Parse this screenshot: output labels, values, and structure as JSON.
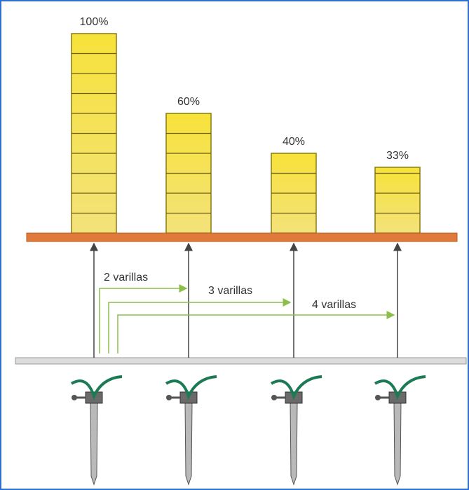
{
  "chart_data": {
    "type": "bar",
    "categories": [
      null,
      null,
      null,
      null
    ],
    "values": [
      100,
      60,
      40,
      33
    ],
    "value_labels": [
      "100%",
      "60%",
      "40%",
      "33%"
    ],
    "color": "#f5d800",
    "annotations": [
      "2 varillas",
      "3 varillas",
      "4 varillas"
    ]
  }
}
